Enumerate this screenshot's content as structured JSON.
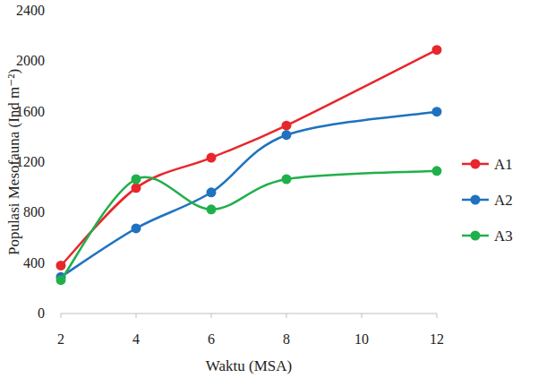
{
  "chart_data": {
    "type": "line",
    "x_label": "Waktu (MSA)",
    "y_label": "Populasi Mesofauna (Ind m⁻²)",
    "x": [
      2,
      4,
      6,
      8,
      12
    ],
    "series": [
      {
        "name": "A1",
        "color": "#e8262b",
        "values": [
          380,
          995,
          1235,
          1490,
          2090
        ]
      },
      {
        "name": "A2",
        "color": "#1f72bf",
        "values": [
          290,
          675,
          960,
          1415,
          1600
        ]
      },
      {
        "name": "A3",
        "color": "#20b04b",
        "values": [
          265,
          1065,
          825,
          1065,
          1130
        ]
      }
    ],
    "xlim": [
      2,
      12
    ],
    "xticks": [
      2,
      4,
      6,
      8,
      10,
      12
    ],
    "ylim": [
      0,
      2400
    ],
    "yticks": [
      0,
      400,
      800,
      1200,
      1600,
      2000,
      2400
    ],
    "grid": false,
    "legend": "right",
    "marker": "circle",
    "line_style": "solid"
  }
}
